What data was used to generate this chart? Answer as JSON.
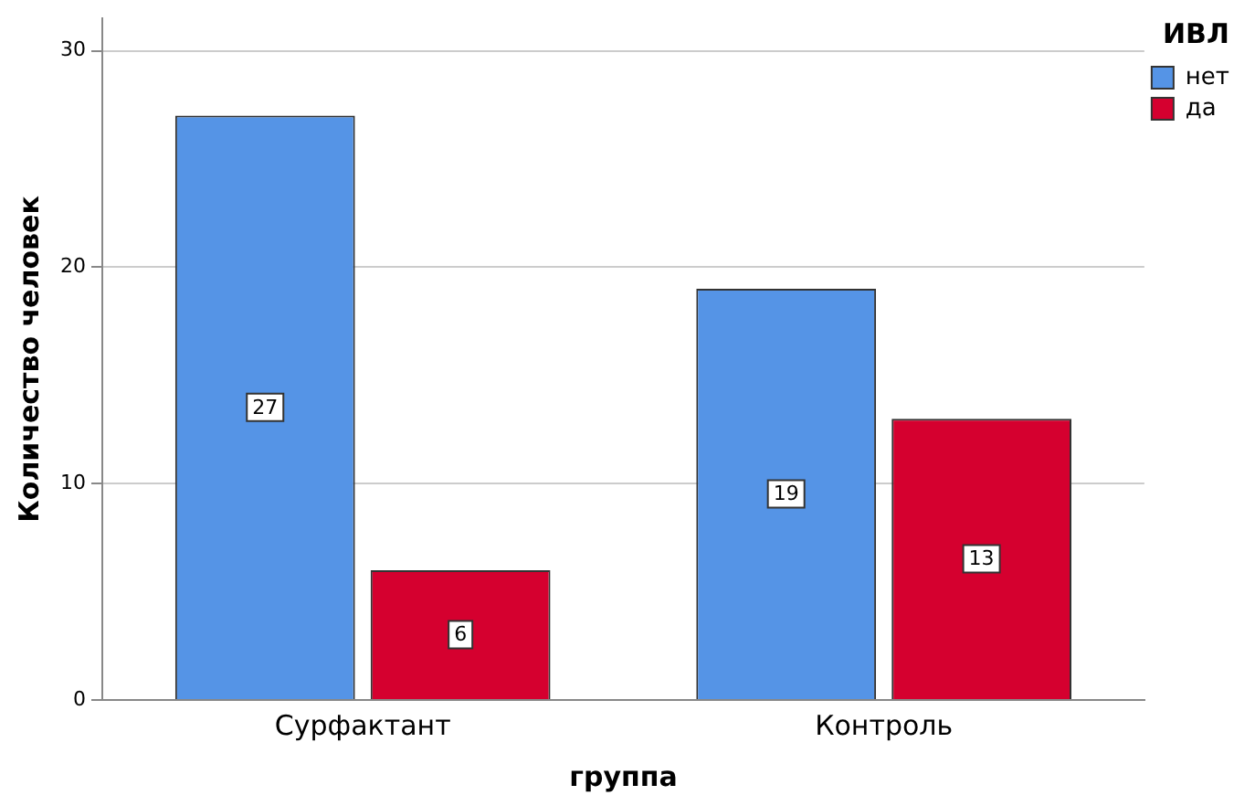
{
  "chart_data": {
    "type": "bar",
    "xlabel": "группа",
    "ylabel": "Количество человек",
    "legend_title": "ИВЛ",
    "categories": [
      "Сурфактант",
      "Контроль"
    ],
    "series": [
      {
        "name": "нет",
        "color": "#5594e6",
        "values": [
          27,
          19
        ]
      },
      {
        "name": "да",
        "color": "#d5002f",
        "values": [
          6,
          13
        ]
      }
    ],
    "ylim": [
      0,
      31.5
    ],
    "yticks": [
      0,
      10,
      20,
      30
    ],
    "grid": "y",
    "legend": "top right",
    "data_labels": true
  }
}
